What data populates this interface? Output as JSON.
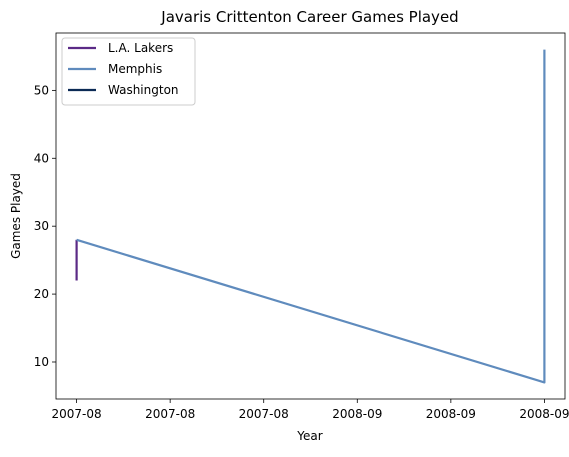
{
  "chart_data": {
    "type": "line",
    "title": "Javaris Crittenton Career Games Played",
    "xlabel": "Year",
    "ylabel": "Games Played",
    "x_tick_labels": [
      "2007-08",
      "2007-08",
      "2007-08",
      "2008-09",
      "2008-09",
      "2008-09"
    ],
    "x_ticks": [
      0,
      0.2,
      0.4,
      0.6,
      0.8,
      1.0
    ],
    "xlim": [
      -0.044,
      1.044
    ],
    "y_ticks": [
      10,
      20,
      30,
      40,
      50
    ],
    "ylim": [
      4.55,
      58.45
    ],
    "grid": false,
    "legend_position": "upper left",
    "series": [
      {
        "name": "L.A. Lakers",
        "color": "#5b2a86",
        "x": [
          0,
          0
        ],
        "y": [
          22,
          28
        ]
      },
      {
        "name": "Memphis",
        "color": "#5f8bbd",
        "x": [
          0,
          1,
          1
        ],
        "y": [
          28,
          7,
          56
        ]
      },
      {
        "name": "Washington",
        "color": "#0b2a55",
        "x": [],
        "y": []
      }
    ]
  }
}
